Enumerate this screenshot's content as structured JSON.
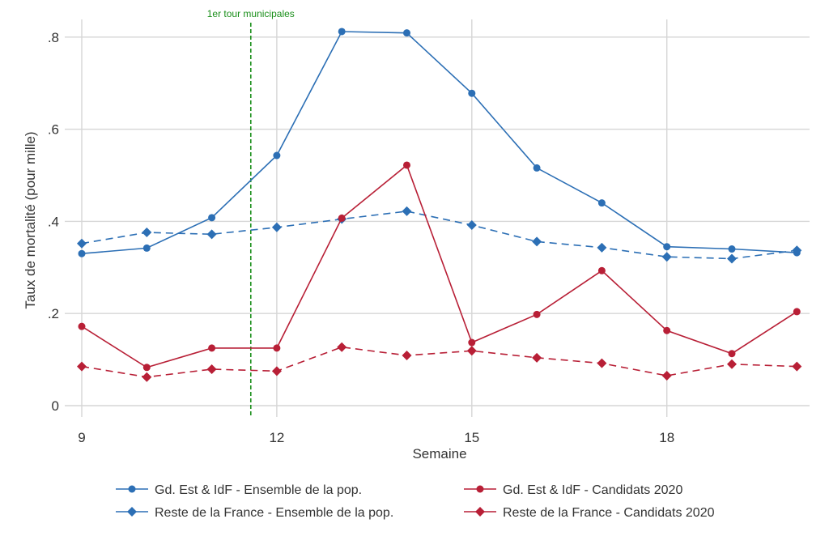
{
  "chart_data": {
    "type": "line",
    "xlabel": "Semaine",
    "ylabel": "Taux de mortalité (pour mille)",
    "xlim": [
      9,
      20
    ],
    "ylim": [
      0,
      0.8
    ],
    "x_ticks": [
      9,
      12,
      15,
      18
    ],
    "x_tick_labels": [
      "9",
      "12",
      "15",
      "18"
    ],
    "y_ticks": [
      0,
      0.2,
      0.4,
      0.6,
      0.8
    ],
    "y_tick_labels": [
      "0",
      ".2",
      ".4",
      ".6",
      ".8"
    ],
    "grid": true,
    "legend_position": "bottom",
    "annotation": {
      "label": "1er tour municipales",
      "x": 11.6,
      "color": "#1a8f1a"
    },
    "x": [
      9,
      10,
      11,
      12,
      13,
      14,
      15,
      16,
      17,
      18,
      19,
      20
    ],
    "series": [
      {
        "name": "Gd. Est & IdF - Ensemble de la pop.",
        "color": "#2c6fb5",
        "marker": "circle",
        "dash": "solid",
        "values": [
          0.33,
          0.342,
          0.408,
          0.543,
          0.812,
          0.809,
          0.678,
          0.516,
          0.44,
          0.345,
          0.34,
          0.332
        ]
      },
      {
        "name": "Reste de la France - Ensemble de la pop.",
        "color": "#2c6fb5",
        "marker": "diamond",
        "dash": "dashed",
        "values": [
          0.352,
          0.376,
          0.372,
          0.387,
          0.405,
          0.422,
          0.392,
          0.356,
          0.343,
          0.323,
          0.319,
          0.337
        ]
      },
      {
        "name": "Gd. Est & IdF - Candidats 2020",
        "color": "#b81f36",
        "marker": "circle",
        "dash": "solid",
        "values": [
          0.172,
          0.083,
          0.125,
          0.125,
          0.407,
          0.522,
          0.137,
          0.198,
          0.293,
          0.163,
          0.113,
          0.204
        ]
      },
      {
        "name": "Reste de la France - Candidats 2020",
        "color": "#b81f36",
        "marker": "diamond",
        "dash": "dashed",
        "values": [
          0.085,
          0.062,
          0.079,
          0.075,
          0.127,
          0.109,
          0.119,
          0.104,
          0.092,
          0.065,
          0.09,
          0.085
        ]
      }
    ]
  }
}
